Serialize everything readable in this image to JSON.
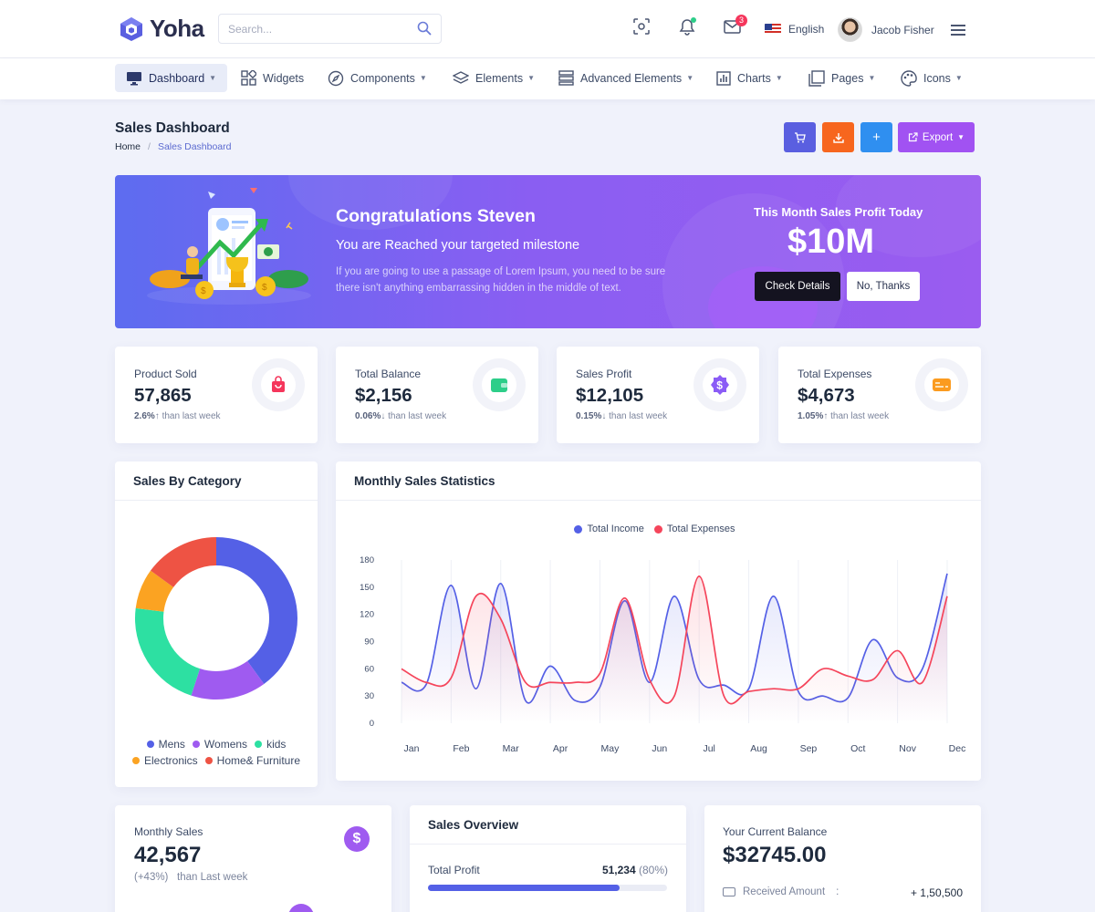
{
  "header": {
    "brand": "Yoha",
    "search_placeholder": "Search...",
    "language": "English",
    "user_name": "Jacob Fisher",
    "mail_badge": "3"
  },
  "nav": {
    "items": [
      {
        "label": "Dashboard",
        "icon": "monitor-icon"
      },
      {
        "label": "Widgets",
        "icon": "widgets-icon"
      },
      {
        "label": "Components",
        "icon": "compass-icon"
      },
      {
        "label": "Elements",
        "icon": "layers-icon"
      },
      {
        "label": "Advanced Elements",
        "icon": "server-icon"
      },
      {
        "label": "Charts",
        "icon": "bar-chart-icon"
      },
      {
        "label": "Pages",
        "icon": "pages-icon"
      },
      {
        "label": "Icons",
        "icon": "palette-icon"
      }
    ]
  },
  "page": {
    "title": "Sales Dashboard",
    "breadcrumb_home": "Home",
    "breadcrumb_current": "Sales Dashboard",
    "export_label": "Export"
  },
  "banner": {
    "title": "Congratulations Steven",
    "subtitle": "You are Reached your targeted milestone",
    "description": "If you are going to use a passage of Lorem Ipsum, you need to be sure there isn't anything embarrassing hidden in the middle of text.",
    "right_title": "This Month Sales Profit Today",
    "big_value": "$10M",
    "primary_button": "Check Details",
    "secondary_button": "No, Thanks"
  },
  "stats": [
    {
      "label": "Product Sold",
      "value": "57,865",
      "change": "2.6%",
      "arrow": "↑",
      "suffix": "than last week",
      "icon": "shopping-bag-icon",
      "color": "#f5365c"
    },
    {
      "label": "Total Balance",
      "value": "$2,156",
      "change": "0.06%",
      "arrow": "↓",
      "suffix": "than last week",
      "icon": "wallet-icon",
      "color": "#2dce89"
    },
    {
      "label": "Sales Profit",
      "value": "$12,105",
      "change": "0.15%",
      "arrow": "↓",
      "suffix": "than last week",
      "icon": "dollar-badge-icon",
      "color": "#8b5cf6"
    },
    {
      "label": "Total Expenses",
      "value": "$4,673",
      "change": "1.05%",
      "arrow": "↑",
      "suffix": "than last week",
      "icon": "credit-card-icon",
      "color": "#fb9b1f"
    }
  ],
  "category": {
    "title": "Sales By Category",
    "legend": [
      "Mens",
      "Womens",
      "kids",
      "Electronics",
      "Home& Furniture"
    ]
  },
  "monthly": {
    "title": "Monthly Sales Statistics"
  },
  "chart_data": [
    {
      "type": "pie",
      "variant": "donut",
      "labels": [
        "Mens",
        "Womens",
        "kids",
        "Electronics",
        "Home& Furniture"
      ],
      "values": [
        40,
        15,
        22,
        8,
        15
      ],
      "colors": [
        "#5460e6",
        "#9f5bf0",
        "#2de0a2",
        "#fba322",
        "#ee5344"
      ]
    },
    {
      "type": "line",
      "categories": [
        "Jan",
        "Feb",
        "Mar",
        "Apr",
        "May",
        "Jun",
        "Jul",
        "Aug",
        "Sep",
        "Oct",
        "Nov",
        "Dec"
      ],
      "ylim": [
        0,
        180
      ],
      "yticks": [
        180,
        150,
        120,
        90,
        60,
        30,
        0
      ],
      "legend_position": "top-center",
      "x": [
        0,
        0.5,
        1,
        1.5,
        2,
        2.5,
        3,
        3.5,
        4,
        4.5,
        5,
        5.5,
        6,
        6.5,
        7,
        7.5,
        8,
        8.5,
        9,
        9.5,
        10,
        10.5,
        11
      ],
      "series": [
        {
          "name": "Total Income",
          "color": "#5460e6",
          "values": [
            45,
            43,
            152,
            38,
            154,
            25,
            63,
            25,
            40,
            135,
            45,
            140,
            48,
            42,
            38,
            140,
            35,
            30,
            28,
            92,
            50,
            60,
            165
          ]
        },
        {
          "name": "Total Expenses",
          "color": "#f5455b",
          "values": [
            60,
            45,
            50,
            140,
            115,
            45,
            45,
            45,
            55,
            138,
            48,
            30,
            162,
            30,
            35,
            38,
            38,
            60,
            52,
            48,
            80,
            45,
            140
          ]
        }
      ]
    }
  ],
  "bottom": {
    "monthly_sales_label": "Monthly Sales",
    "monthly_sales_value": "42,567",
    "monthly_sales_change": "(+43%)",
    "monthly_sales_suffix": "than Last week",
    "overview_title": "Sales Overview",
    "total_profit_label": "Total Profit",
    "total_profit_value": "51,234",
    "total_profit_pct": "(80%)",
    "total_profit_progress": 0.8,
    "balance_label": "Your Current Balance",
    "balance_value": "$32745.00",
    "received_label": "Received Amount",
    "received_sep": ":",
    "received_value": "+ 1,50,500"
  }
}
